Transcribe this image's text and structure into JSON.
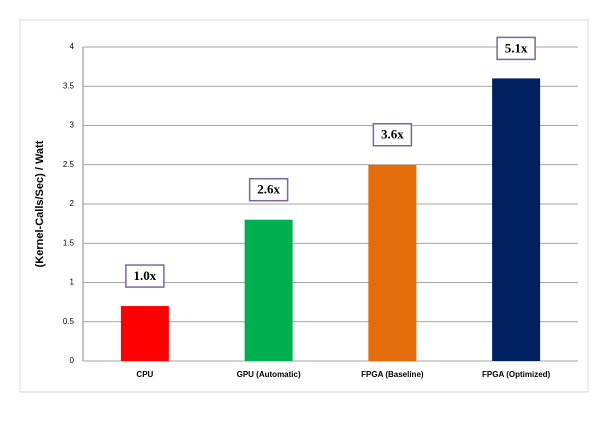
{
  "chart_data": {
    "type": "bar",
    "y_label": "(Kernel-Calls/Sec) / Watt",
    "categories": [
      "CPU",
      "GPU (Automatic)",
      "FPGA (Baseline)",
      "FPGA (Optimized)"
    ],
    "values": [
      0.7,
      1.8,
      2.5,
      3.6
    ],
    "colors": [
      "#ff0000",
      "#00b050",
      "#e46c0a",
      "#002060"
    ],
    "annotations": [
      "1.0x",
      "2.6x",
      "3.6x",
      "5.1x"
    ],
    "ylim": [
      0,
      4
    ],
    "yticks": [
      0,
      0.5,
      1,
      1.5,
      2,
      2.5,
      3,
      3.5,
      4
    ],
    "grid": true
  }
}
